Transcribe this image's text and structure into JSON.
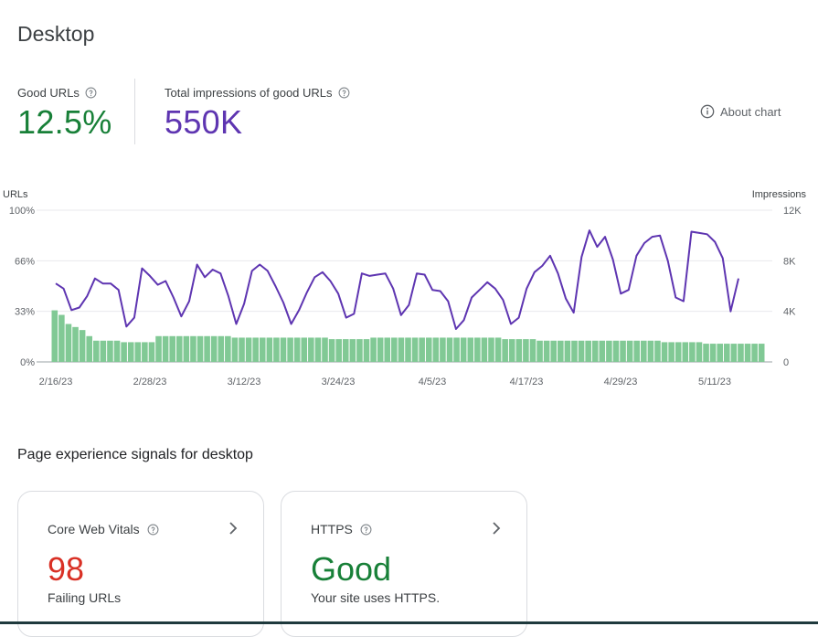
{
  "page": {
    "title": "Desktop"
  },
  "metrics": {
    "good_urls": {
      "label": "Good URLs",
      "value": "12.5%",
      "color": "#188038"
    },
    "impressions": {
      "label": "Total impressions of good URLs",
      "value": "550K",
      "color": "#5e35b1"
    }
  },
  "about_chart": {
    "label": "About chart",
    "icon": "info-icon"
  },
  "chart_data": {
    "type": "bar",
    "left_axis_title": "URLs",
    "right_axis_title": "Impressions",
    "left_ticks": [
      "100%",
      "66%",
      "33%",
      "0%"
    ],
    "right_ticks": [
      "12K",
      "8K",
      "4K",
      "0"
    ],
    "x_ticks": [
      "2/16/23",
      "2/28/23",
      "3/12/23",
      "3/24/23",
      "4/5/23",
      "4/17/23",
      "4/29/23",
      "5/11/23"
    ],
    "ylim_left": [
      0,
      100
    ],
    "ylim_right": [
      0,
      12000
    ],
    "bar_color": "#81c995",
    "line_color": "#5e35b1",
    "grid": true,
    "series": [
      {
        "name": "Good URLs",
        "kind": "bar",
        "axis": "left",
        "values": [
          34,
          31,
          25,
          23,
          21,
          17,
          14,
          14,
          14,
          14,
          13,
          13,
          13,
          13,
          13,
          17,
          17,
          17,
          17,
          17,
          17,
          17,
          17,
          17,
          17,
          17,
          16,
          16,
          16,
          16,
          16,
          16,
          16,
          16,
          16,
          16,
          16,
          16,
          16,
          16,
          15,
          15,
          15,
          15,
          15,
          15,
          16,
          16,
          16,
          16,
          16,
          16,
          16,
          16,
          16,
          16,
          16,
          16,
          16,
          16,
          16,
          16,
          16,
          16,
          16,
          15,
          15,
          15,
          15,
          15,
          14,
          14,
          14,
          14,
          14,
          14,
          14,
          14,
          14,
          14,
          14,
          14,
          14,
          14,
          14,
          14,
          14,
          14,
          13,
          13,
          13,
          13,
          13,
          13,
          12,
          12,
          12,
          12,
          12,
          12,
          12,
          12,
          12
        ]
      },
      {
        "name": "Total impressions of good URLs",
        "kind": "line",
        "axis": "right",
        "values": [
          6200,
          5800,
          4100,
          4300,
          5200,
          6600,
          6200,
          6200,
          5700,
          2800,
          3500,
          7400,
          6800,
          6100,
          6400,
          5100,
          3600,
          4800,
          7700,
          6700,
          7300,
          7000,
          5200,
          3000,
          4600,
          7200,
          7700,
          7200,
          6000,
          4700,
          3000,
          4100,
          5500,
          6700,
          7100,
          6400,
          5400,
          3500,
          3800,
          7000,
          6800,
          6900,
          7000,
          5800,
          3700,
          4500,
          7000,
          6900,
          5700,
          5600,
          4800,
          2600,
          3300,
          5100,
          5700,
          6300,
          5800,
          4900,
          3000,
          3500,
          5800,
          7100,
          7600,
          8400,
          7000,
          5000,
          3900,
          8300,
          10400,
          9100,
          9900,
          8100,
          5400,
          5700,
          8400,
          9400,
          9900,
          10000,
          8000,
          5100,
          4800,
          10300,
          10200,
          10100,
          9500,
          8200,
          4000,
          6600
        ]
      }
    ]
  },
  "section": {
    "title": "Page experience signals for desktop"
  },
  "cards": [
    {
      "title": "Core Web Vitals",
      "value": "98",
      "value_color": "#d93025",
      "sub": "Failing URLs"
    },
    {
      "title": "HTTPS",
      "value": "Good",
      "value_color": "#188038",
      "sub": "Your site uses HTTPS."
    }
  ]
}
